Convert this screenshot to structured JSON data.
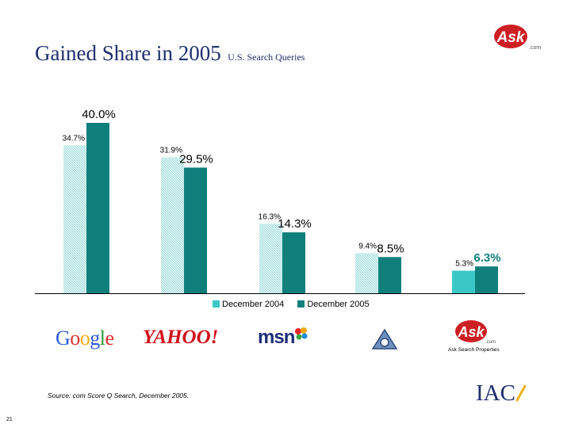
{
  "slide": {
    "title": "Gained Share in 2005",
    "subtitle": "U.S. Search Queries",
    "source": "Source: com Score Q Search, December 2005.",
    "page_number": "21",
    "ask_logo_text": "Ask",
    "ask_logo_suffix": ".com",
    "ask_caption": "Ask Search Properties",
    "iac_logo_text": "IAC"
  },
  "logos": {
    "google": "Google",
    "yahoo": "YAHOO!",
    "msn": "msn"
  },
  "colors": {
    "dec2004": "#3cc7c7",
    "dec2005": "#0f7f7c",
    "title": "#1f2f6e",
    "ask_red": "#cc1f24"
  },
  "chart_data": {
    "type": "bar",
    "categories": [
      "Google",
      "Yahoo!",
      "MSN",
      "AOL",
      "Ask Search Properties"
    ],
    "series": [
      {
        "name": "December 2004",
        "values": [
          34.7,
          31.9,
          16.3,
          9.4,
          5.3
        ],
        "labels": [
          "34.7%",
          "31.9%",
          "16.3%",
          "9.4%",
          "5.3%"
        ]
      },
      {
        "name": "December 2005",
        "values": [
          40.0,
          29.5,
          14.3,
          8.5,
          6.3
        ],
        "labels": [
          "40.0%",
          "29.5%",
          "14.3%",
          "8.5%",
          "6.3%"
        ]
      }
    ],
    "title": "Gained Share in 2005",
    "ylim": [
      0,
      40
    ]
  }
}
